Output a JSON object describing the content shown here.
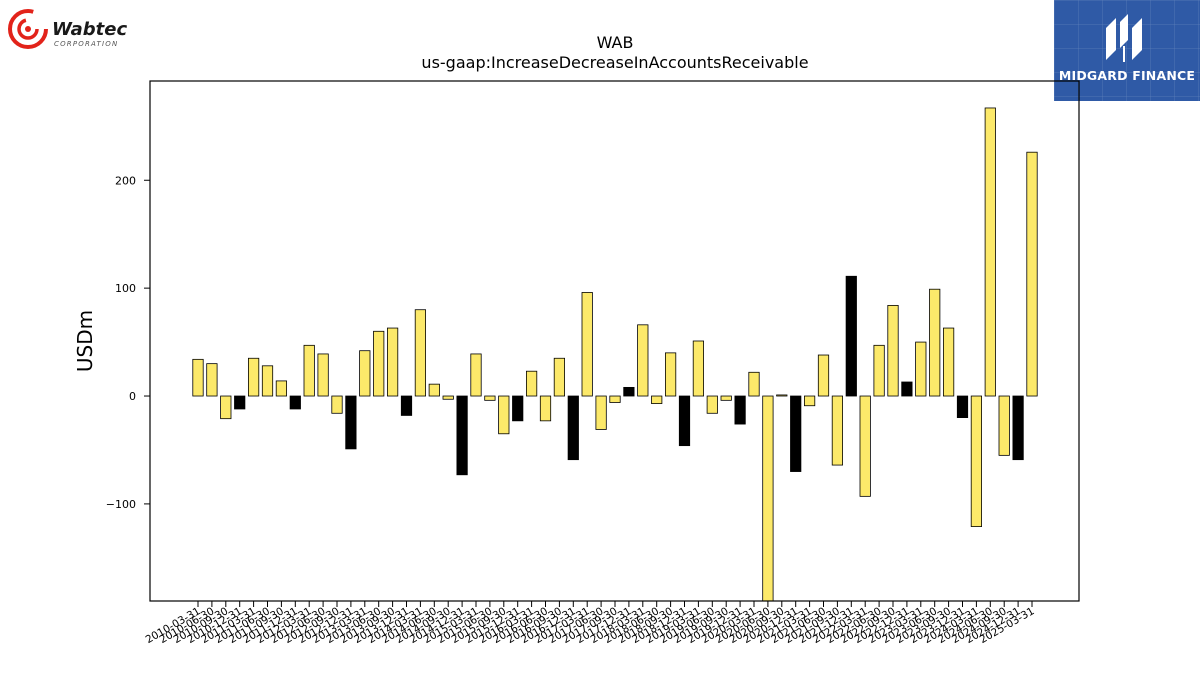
{
  "logos": {
    "left": {
      "name": "Wabtec",
      "tagline": "CORPORATION",
      "color": "#e2231a"
    },
    "right": {
      "name": "MIDGARD FINANCE",
      "color": "#2f5aa6"
    }
  },
  "chart_data": {
    "type": "bar",
    "title": "WAB",
    "subtitle": "us-gaap:IncreaseDecreaseInAccountsReceivable",
    "xlabel": "",
    "ylabel": "USDm",
    "ylim": [
      -190,
      292
    ],
    "yticks": [
      -100,
      0,
      100,
      200
    ],
    "grid": false,
    "legend": "none",
    "colors": {
      "positive_fill": "#fce96a",
      "negative_fill": "#fce96a",
      "highlight_fill": "#000000",
      "edge": "#000000"
    },
    "categories": [
      "2010-03-31",
      "2010-06-30",
      "2010-09-30",
      "2010-12-31",
      "2011-03-31",
      "2011-06-30",
      "2011-09-30",
      "2011-12-31",
      "2012-03-31",
      "2012-06-30",
      "2012-09-30",
      "2012-12-31",
      "2013-03-31",
      "2013-06-30",
      "2013-09-30",
      "2013-12-31",
      "2014-03-31",
      "2014-06-30",
      "2014-09-30",
      "2014-12-31",
      "2015-03-31",
      "2015-06-30",
      "2015-09-30",
      "2015-12-31",
      "2016-03-31",
      "2016-06-30",
      "2016-09-30",
      "2016-12-31",
      "2017-03-31",
      "2017-06-30",
      "2017-09-30",
      "2017-12-31",
      "2018-03-31",
      "2018-06-30",
      "2018-09-30",
      "2018-12-31",
      "2019-03-31",
      "2019-06-30",
      "2019-09-30",
      "2019-12-31",
      "2020-03-31",
      "2020-06-30",
      "2020-09-30",
      "2020-12-31",
      "2021-03-31",
      "2021-06-30",
      "2021-09-30",
      "2021-12-31",
      "2022-03-31",
      "2022-06-30",
      "2022-09-30",
      "2022-12-31",
      "2023-03-31",
      "2023-06-30",
      "2023-09-30",
      "2023-12-31",
      "2024-03-31",
      "2024-06-30",
      "2024-09-30",
      "2024-12-31",
      "2025-03-31"
    ],
    "values": [
      34,
      30,
      -21,
      -12,
      35,
      28,
      14,
      -12,
      47,
      39,
      -16,
      -49,
      42,
      60,
      63,
      -18,
      80,
      11,
      -3,
      -73,
      39,
      -4,
      -35,
      -23,
      23,
      -23,
      35,
      -59,
      96,
      -31,
      -6,
      8,
      66,
      -7,
      40,
      -46,
      51,
      -16,
      -4,
      -26,
      22,
      -195,
      1,
      -70,
      -9,
      38,
      -64,
      111,
      -93,
      47,
      84,
      13,
      50,
      99,
      63,
      -20,
      -121,
      267,
      -55,
      -59,
      226
    ],
    "highlight": [
      false,
      false,
      false,
      true,
      false,
      false,
      false,
      true,
      false,
      false,
      false,
      true,
      false,
      false,
      false,
      true,
      false,
      false,
      false,
      true,
      false,
      false,
      false,
      true,
      false,
      false,
      false,
      true,
      false,
      false,
      false,
      true,
      false,
      false,
      false,
      true,
      false,
      false,
      false,
      true,
      false,
      false,
      false,
      true,
      false,
      false,
      false,
      true,
      false,
      false,
      false,
      true,
      false,
      false,
      false,
      true,
      false,
      false,
      false,
      true,
      false
    ]
  }
}
